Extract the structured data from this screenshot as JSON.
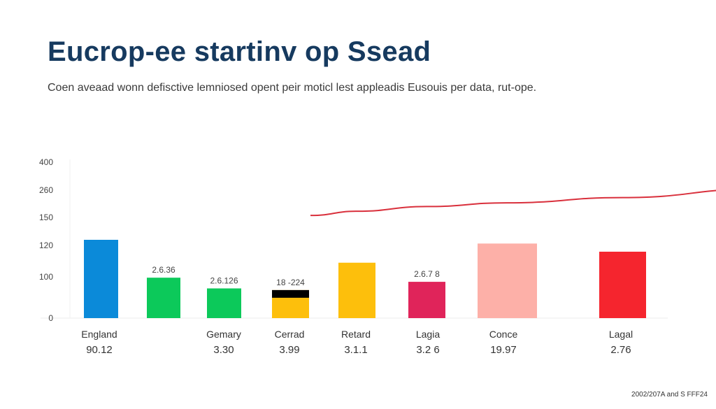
{
  "title": "Eucrop-ee startinv op  Ssead",
  "subtitle": "Coen aveaad wonn defisctive lemniosed opent peir moticl lest appleadis Eusouis per data, rut-ope.",
  "footnote": "2002/207A and S FFF24",
  "chart_data": {
    "type": "bar",
    "title": "Eucrop-ee startinv op  Ssead",
    "xlabel": "",
    "ylabel": "",
    "y_ticks": [
      "0",
      "100",
      "120",
      "150",
      "260",
      "400"
    ],
    "categories": [
      "England",
      "",
      "Gemary",
      "Cerrad",
      "Retard",
      "Lagia",
      "Conce",
      "Lagal"
    ],
    "category_values_text": [
      "90.12",
      "",
      "3.30",
      "3.99",
      "3.1.1",
      "3.2 6",
      "19.97",
      "2.76"
    ],
    "bars": [
      {
        "label": "England",
        "value": 126,
        "color": "#0b8ad9",
        "data_label": ""
      },
      {
        "label": "",
        "value": 98,
        "color": "#0cc95a",
        "data_label": "2.6.36"
      },
      {
        "label": "Gemary",
        "value": 72,
        "color": "#0cc95a",
        "data_label": "2.6.126"
      },
      {
        "label": "Cerrad",
        "value": 68,
        "color": "#fdbf0c",
        "data_label": "18 -224",
        "cap_color": "#000000",
        "cap_value": 11
      },
      {
        "label": "Retard",
        "value": 109,
        "color": "#fdbf0c",
        "data_label": ""
      },
      {
        "label": "Lagia",
        "value": 88,
        "color": "#e0245a",
        "data_label": "2.6.7 8"
      },
      {
        "label": "Conce",
        "value": 122,
        "color": "#fdb0a8",
        "data_label": ""
      },
      {
        "label": "Lagal",
        "value": 116,
        "color": "#f5252e",
        "data_label": ""
      }
    ],
    "line_series": {
      "name": "trend",
      "color": "#d9303c",
      "x": [
        3.3,
        4,
        5,
        6,
        7,
        8.2
      ],
      "y": [
        158,
        175,
        194,
        209,
        230,
        267
      ]
    },
    "grid": false,
    "legend": "none"
  }
}
